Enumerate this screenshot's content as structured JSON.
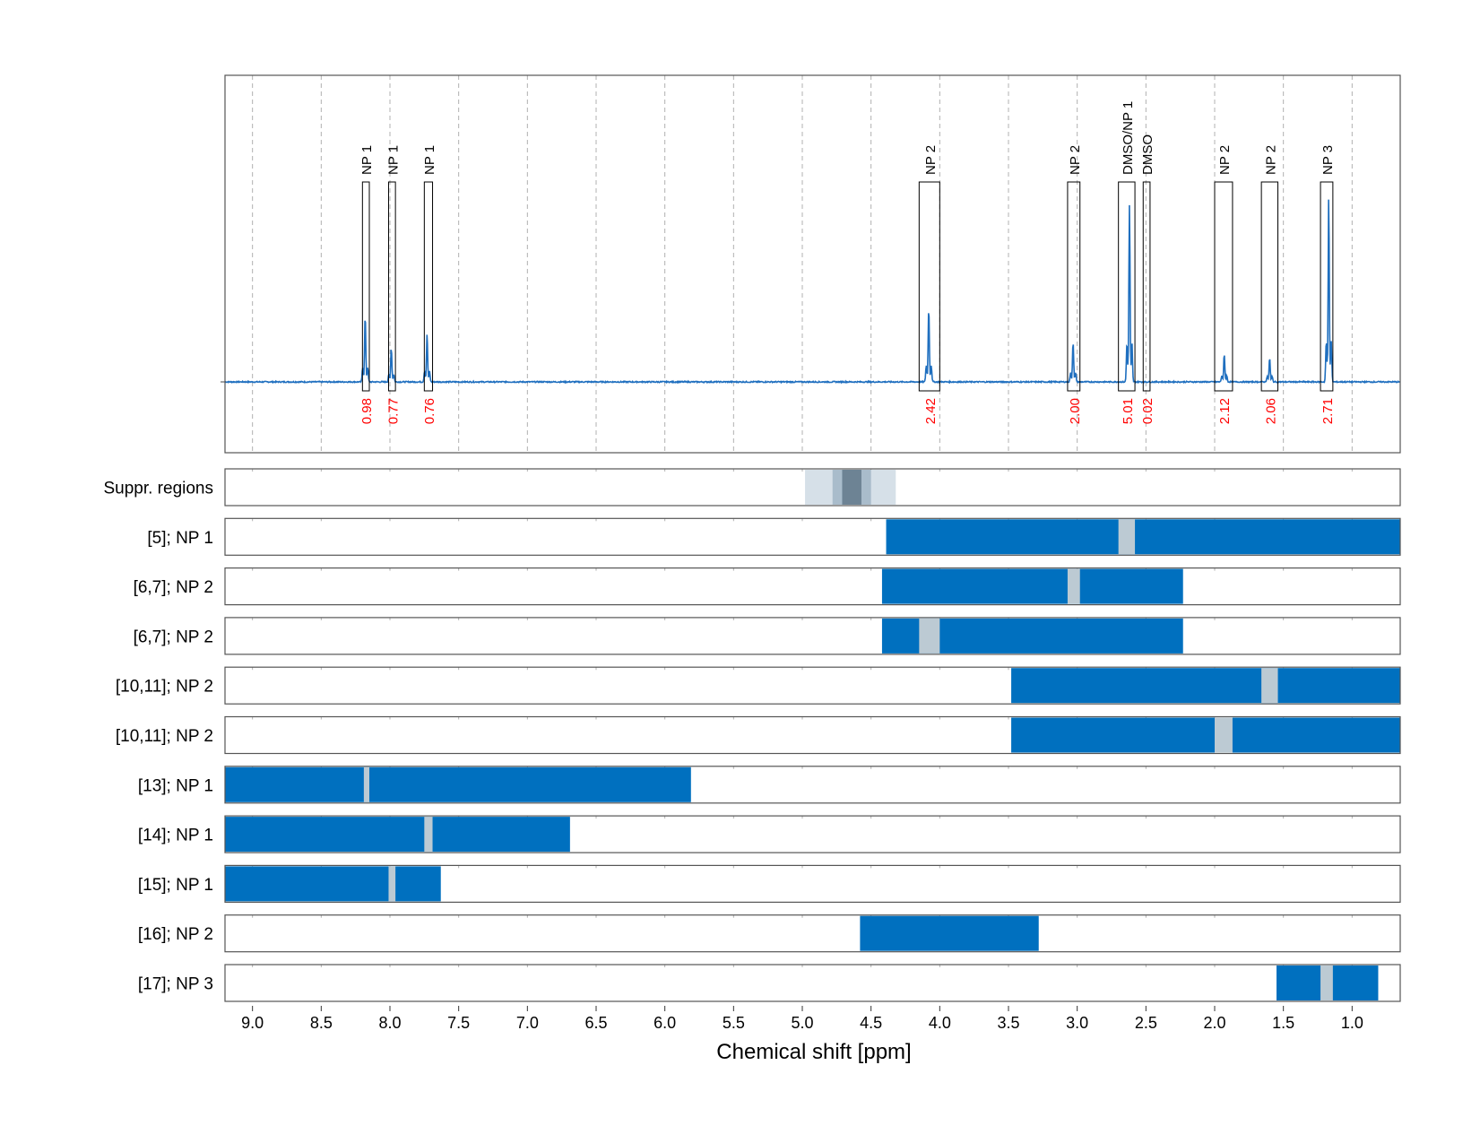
{
  "chart_data": {
    "type": "line",
    "xlabel": "Chemical shift [ppm]",
    "x_reversed": true,
    "xlim": [
      9.2,
      0.65
    ],
    "x_ticks": [
      "9.0",
      "8.5",
      "8.0",
      "7.5",
      "7.0",
      "6.5",
      "6.0",
      "5.5",
      "5.0",
      "4.5",
      "4.0",
      "3.5",
      "3.0",
      "2.5",
      "2.0",
      "1.5",
      "1.0"
    ],
    "spectrum": {
      "color": "#1f6fbf",
      "peaks": [
        {
          "ppm": 8.18,
          "height": 0.33
        },
        {
          "ppm": 7.99,
          "height": 0.17
        },
        {
          "ppm": 7.73,
          "height": 0.24
        },
        {
          "ppm": 4.08,
          "height": 0.37
        },
        {
          "ppm": 3.03,
          "height": 0.2
        },
        {
          "ppm": 2.62,
          "height": 0.88
        },
        {
          "ppm": 1.93,
          "height": 0.14
        },
        {
          "ppm": 1.6,
          "height": 0.12
        },
        {
          "ppm": 1.17,
          "height": 0.92
        }
      ]
    },
    "integration_regions": [
      {
        "label": "NP 1",
        "from": 8.2,
        "to": 8.15,
        "integral": "0.98"
      },
      {
        "label": "NP 1",
        "from": 8.01,
        "to": 7.96,
        "integral": "0.77"
      },
      {
        "label": "NP 1",
        "from": 7.75,
        "to": 7.69,
        "integral": "0.76"
      },
      {
        "label": "NP 2",
        "from": 4.15,
        "to": 4.0,
        "integral": "2.42"
      },
      {
        "label": "NP 2",
        "from": 3.07,
        "to": 2.98,
        "integral": "2.00"
      },
      {
        "label": "DMSO/NP 1",
        "from": 2.7,
        "to": 2.58,
        "integral": "5.01"
      },
      {
        "label": "DMSO",
        "from": 2.52,
        "to": 2.47,
        "integral": "0.02"
      },
      {
        "label": "NP 2",
        "from": 2.0,
        "to": 1.87,
        "integral": "2.12"
      },
      {
        "label": "NP 2",
        "from": 1.66,
        "to": 1.54,
        "integral": "2.06"
      },
      {
        "label": "NP 3",
        "from": 1.23,
        "to": 1.14,
        "integral": "2.71"
      }
    ],
    "suppression": {
      "label": "Suppr. regions",
      "bands": [
        {
          "from": 4.98,
          "to": 4.32,
          "shade": "#d6e0e8"
        },
        {
          "from": 4.78,
          "to": 4.5,
          "shade": "#a9bccb"
        },
        {
          "from": 4.71,
          "to": 4.57,
          "shade": "#6d8394"
        }
      ]
    },
    "tracks": [
      {
        "label": "[5]; NP 1",
        "from": 4.39,
        "to": 0.65,
        "mark": [
          2.7,
          2.58
        ]
      },
      {
        "label": "[6,7]; NP 2",
        "from": 4.42,
        "to": 2.23,
        "mark": [
          3.07,
          2.98
        ]
      },
      {
        "label": "[6,7]; NP 2",
        "from": 4.42,
        "to": 2.23,
        "mark": [
          4.15,
          4.0
        ]
      },
      {
        "label": "[10,11]; NP 2",
        "from": 3.48,
        "to": 0.65,
        "mark": [
          1.66,
          1.54
        ]
      },
      {
        "label": "[10,11]; NP 2",
        "from": 3.48,
        "to": 0.65,
        "mark": [
          2.0,
          1.87
        ]
      },
      {
        "label": "[13]; NP 1",
        "from": 9.2,
        "to": 5.81,
        "mark": [
          8.19,
          8.15
        ]
      },
      {
        "label": "[14]; NP 1",
        "from": 9.2,
        "to": 6.69,
        "mark": [
          7.75,
          7.69
        ]
      },
      {
        "label": "[15]; NP 1",
        "from": 9.2,
        "to": 7.63,
        "mark": [
          8.01,
          7.96
        ]
      },
      {
        "label": "[16]; NP 2",
        "from": 4.58,
        "to": 3.28,
        "mark": null
      },
      {
        "label": "[17]; NP 3",
        "from": 1.55,
        "to": 0.81,
        "mark": [
          1.23,
          1.14
        ]
      }
    ],
    "colors": {
      "bar": "#0070bf",
      "mark": "#bccad3",
      "integral_text": "#ff0000",
      "grid": "#b0b0b0",
      "frame": "#555555"
    }
  }
}
